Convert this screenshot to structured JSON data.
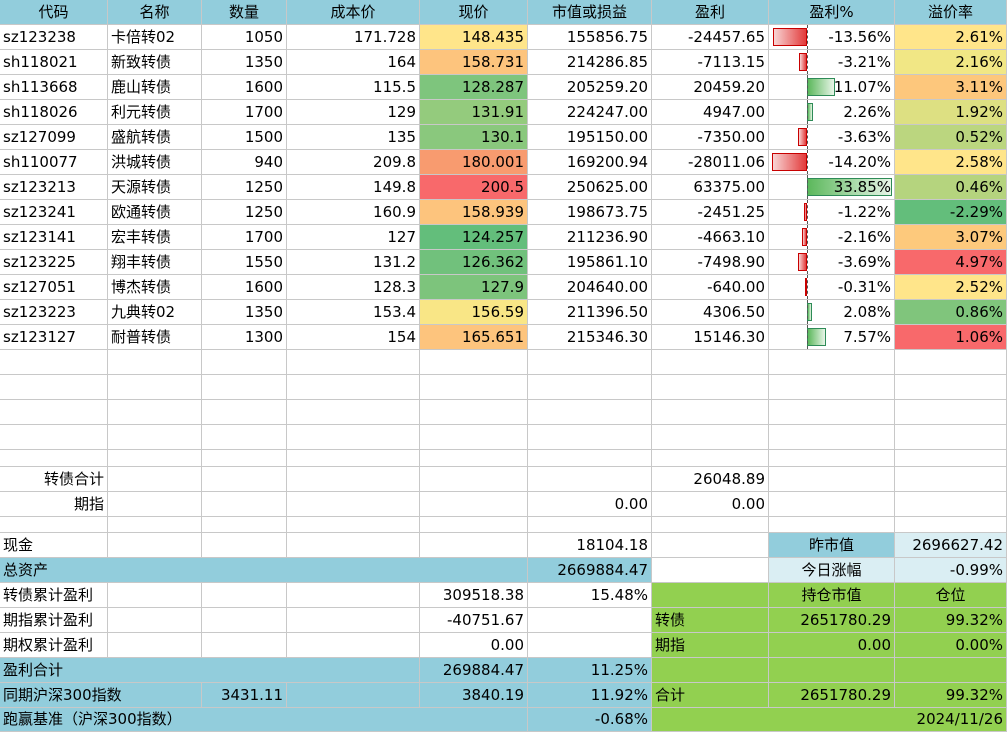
{
  "colors": {
    "header": "#92cddc",
    "green_block": "#92d050",
    "light_blue": "#daeef3",
    "cf_red": "#f8696b",
    "cf_orange": "#fbaa77",
    "cf_yellow": "#ffeb84",
    "cf_green": "#63be7b"
  },
  "headers": [
    "代码",
    "名称",
    "数量",
    "成本价",
    "现价",
    "市值或损益",
    "盈利",
    "盈利%",
    "溢价率"
  ],
  "holdings": [
    {
      "code": "sz123238",
      "name": "卡倍转02",
      "qty": "1050",
      "cost": "171.728",
      "price": "148.435",
      "price_color": "#ffe58a",
      "value": "155856.75",
      "profit": "-24457.65",
      "pct": "-13.56%",
      "pct_value": -13.56,
      "premium": "2.61%",
      "premium_color": "#ffe58a"
    },
    {
      "code": "sh118021",
      "name": "新致转债",
      "qty": "1350",
      "cost": "164",
      "price": "158.731",
      "price_color": "#fdc47d",
      "value": "214286.85",
      "profit": "-7113.15",
      "pct": "-3.21%",
      "pct_value": -3.21,
      "premium": "2.16%",
      "premium_color": "#f1e785"
    },
    {
      "code": "sh113668",
      "name": "鹿山转债",
      "qty": "1600",
      "cost": "115.5",
      "price": "128.287",
      "price_color": "#7ec57d",
      "value": "205259.20",
      "profit": "20459.20",
      "pct": "11.07%",
      "pct_value": 11.07,
      "premium": "3.11%",
      "premium_color": "#fdc77c"
    },
    {
      "code": "sh118026",
      "name": "利元转债",
      "qty": "1700",
      "cost": "129",
      "price": "131.91",
      "price_color": "#94cb7d",
      "value": "224247.00",
      "profit": "4947.00",
      "pct": "2.26%",
      "pct_value": 2.26,
      "premium": "1.92%",
      "premium_color": "#dde082"
    },
    {
      "code": "sz127099",
      "name": "盛航转债",
      "qty": "1500",
      "cost": "135",
      "price": "130.1",
      "price_color": "#8ac87d",
      "value": "195150.00",
      "profit": "-7350.00",
      "pct": "-3.63%",
      "pct_value": -3.63,
      "premium": "0.52%",
      "premium_color": "#bbd67f"
    },
    {
      "code": "sh110077",
      "name": "洪城转债",
      "qty": "940",
      "cost": "209.8",
      "price": "180.001",
      "price_color": "#f89b6f",
      "value": "169200.94",
      "profit": "-28011.06",
      "pct": "-14.20%",
      "pct_value": -14.2,
      "premium": "2.58%",
      "premium_color": "#ffe58a"
    },
    {
      "code": "sz123213",
      "name": "天源转债",
      "qty": "1250",
      "cost": "149.8",
      "price": "200.5",
      "price_color": "#f8696b",
      "value": "250625.00",
      "profit": "63375.00",
      "pct": "33.85%",
      "pct_value": 33.85,
      "premium": "0.46%",
      "premium_color": "#b5d47e"
    },
    {
      "code": "sz123241",
      "name": "欧通转债",
      "qty": "1250",
      "cost": "160.9",
      "price": "158.939",
      "price_color": "#fdc47d",
      "value": "198673.75",
      "profit": "-2451.25",
      "pct": "-1.22%",
      "pct_value": -1.22,
      "premium": "-2.29%",
      "premium_color": "#63be7b"
    },
    {
      "code": "sz123141",
      "name": "宏丰转债",
      "qty": "1700",
      "cost": "127",
      "price": "124.257",
      "price_color": "#63be7b",
      "value": "211236.90",
      "profit": "-4663.10",
      "pct": "-2.16%",
      "pct_value": -2.16,
      "premium": "3.07%",
      "premium_color": "#fdc97c"
    },
    {
      "code": "sz123225",
      "name": "翔丰转债",
      "qty": "1550",
      "cost": "131.2",
      "price": "126.362",
      "price_color": "#71c17c",
      "value": "195861.10",
      "profit": "-7498.90",
      "pct": "-3.69%",
      "pct_value": -3.69,
      "premium": "4.97%",
      "premium_color": "#f8696b"
    },
    {
      "code": "sz127051",
      "name": "博杰转债",
      "qty": "1600",
      "cost": "128.3",
      "price": "127.9",
      "price_color": "#7dc47c",
      "value": "204640.00",
      "profit": "-640.00",
      "pct": "-0.31%",
      "pct_value": -0.31,
      "premium": "2.52%",
      "premium_color": "#ffe58a"
    },
    {
      "code": "sz123223",
      "name": "九典转02",
      "qty": "1350",
      "cost": "153.4",
      "price": "156.59",
      "price_color": "#f9e686",
      "value": "211396.50",
      "profit": "4306.50",
      "pct": "2.08%",
      "pct_value": 2.08,
      "premium": "0.86%",
      "premium_color": "#80c57c"
    },
    {
      "code": "sz123127",
      "name": "耐普转债",
      "qty": "1300",
      "cost": "154",
      "price": "165.651",
      "price_color": "#fdc47d",
      "value": "215346.30",
      "profit": "15146.30",
      "pct": "7.57%",
      "pct_value": 7.57,
      "premium": "1.06%",
      "premium_color": "#f8696b"
    }
  ],
  "pct_scale": {
    "min": -14.2,
    "max": 33.85
  },
  "summary": {
    "cb_total_label": "转债合计",
    "cb_total_profit": "26048.89",
    "futures_label": "期指",
    "futures_value": "0.00",
    "futures_profit": "0.00"
  },
  "bottom": {
    "cash_label": "现金",
    "cash_value": "18104.18",
    "total_assets_label": "总资产",
    "total_assets_value": "2669884.47",
    "cb_cum_label": "转债累计盈利",
    "cb_cum_value": "309518.38",
    "cb_cum_pct": "15.48%",
    "fut_cum_label": "期指累计盈利",
    "fut_cum_value": "-40751.67",
    "opt_cum_label": "期权累计盈利",
    "opt_cum_value": "0.00",
    "profit_total_label": "盈利合计",
    "profit_total_value": "269884.47",
    "profit_total_pct": "11.25%",
    "hs300_label": "同期沪深300指数",
    "hs300_start": "3431.11",
    "hs300_now": "3840.19",
    "hs300_pct": "11.92%",
    "vs_label": "跑赢基准（沪深300指数）",
    "vs_value": "-0.68%",
    "yesterday_label": "昨市值",
    "yesterday_value": "2696627.42",
    "today_change_label": "今日涨幅",
    "today_change_value": "-0.99%",
    "hold_value_header": "持仓市值",
    "position_header": "仓位",
    "cb_label": "转债",
    "cb_hold_value": "2651780.29",
    "cb_position": "99.32%",
    "fut_label": "期指",
    "fut_hold_value": "0.00",
    "fut_position": "0.00%",
    "sum_label": "合计",
    "sum_hold_value": "2651780.29",
    "sum_position": "99.32%",
    "date": "2024/11/26"
  }
}
